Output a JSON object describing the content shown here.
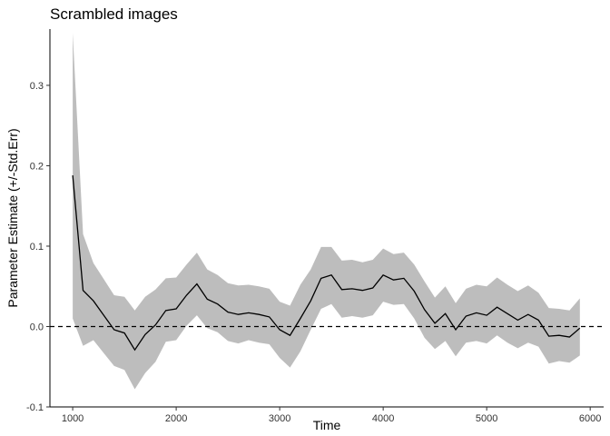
{
  "chart_data": {
    "type": "line",
    "title": "Scrambled images",
    "xlabel": "Time",
    "ylabel": "Parameter Estimate (+/-Std.Err)",
    "xlim": [
      780,
      6130
    ],
    "ylim": [
      -0.1,
      0.37
    ],
    "xticks": [
      1000,
      2000,
      3000,
      4000,
      5000,
      6000
    ],
    "yticks": [
      -0.1,
      0.0,
      0.1,
      0.2,
      0.3
    ],
    "ytick_labels": [
      "-0.1",
      "0.0",
      "0.1",
      "0.2",
      "0.3"
    ],
    "grid": false,
    "legend": "none",
    "reference_line": {
      "y": 0,
      "style": "dashed"
    },
    "colors": {
      "line": "#000000",
      "ribbon": "#bdbdbd",
      "axis": "#000000"
    },
    "series": [
      {
        "x": [
          1000,
          1100,
          1200,
          1300,
          1400,
          1500,
          1600,
          1700,
          1800,
          1900,
          2000,
          2100,
          2200,
          2300,
          2400,
          2500,
          2600,
          2700,
          2800,
          2900,
          3000,
          3100,
          3200,
          3300,
          3400,
          3500,
          3600,
          3700,
          3800,
          3900,
          4000,
          4100,
          4200,
          4300,
          4400,
          4500,
          4600,
          4700,
          4800,
          4900,
          5000,
          5100,
          5200,
          5300,
          5400,
          5500,
          5600,
          5700,
          5800,
          5900
        ],
        "y": [
          0.188,
          0.045,
          0.032,
          0.014,
          -0.004,
          -0.008,
          -0.029,
          -0.01,
          0.002,
          0.02,
          0.022,
          0.039,
          0.053,
          0.034,
          0.028,
          0.018,
          0.015,
          0.017,
          0.015,
          0.012,
          -0.004,
          -0.011,
          0.01,
          0.032,
          0.06,
          0.064,
          0.046,
          0.047,
          0.045,
          0.048,
          0.064,
          0.058,
          0.06,
          0.044,
          0.021,
          0.004,
          0.016,
          -0.004,
          0.013,
          0.017,
          0.014,
          0.024,
          0.016,
          0.008,
          0.015,
          0.008,
          -0.012,
          -0.011,
          -0.013,
          -0.002
        ],
        "lower": [
          0.01,
          -0.024,
          -0.017,
          -0.033,
          -0.049,
          -0.054,
          -0.078,
          -0.058,
          -0.044,
          -0.019,
          -0.017,
          0.001,
          0.014,
          -0.002,
          -0.007,
          -0.018,
          -0.021,
          -0.017,
          -0.02,
          -0.022,
          -0.039,
          -0.051,
          -0.031,
          -0.004,
          0.022,
          0.028,
          0.011,
          0.013,
          0.011,
          0.014,
          0.031,
          0.027,
          0.028,
          0.01,
          -0.014,
          -0.028,
          -0.018,
          -0.037,
          -0.02,
          -0.018,
          -0.021,
          -0.011,
          -0.02,
          -0.027,
          -0.02,
          -0.025,
          -0.046,
          -0.043,
          -0.045,
          -0.036
        ],
        "upper": [
          0.365,
          0.115,
          0.079,
          0.059,
          0.039,
          0.037,
          0.02,
          0.037,
          0.046,
          0.06,
          0.061,
          0.077,
          0.092,
          0.071,
          0.064,
          0.054,
          0.051,
          0.052,
          0.05,
          0.047,
          0.031,
          0.026,
          0.052,
          0.071,
          0.099,
          0.099,
          0.082,
          0.083,
          0.08,
          0.083,
          0.097,
          0.09,
          0.092,
          0.077,
          0.056,
          0.036,
          0.05,
          0.029,
          0.047,
          0.052,
          0.05,
          0.061,
          0.052,
          0.044,
          0.051,
          0.042,
          0.023,
          0.022,
          0.02,
          0.035
        ]
      }
    ]
  }
}
